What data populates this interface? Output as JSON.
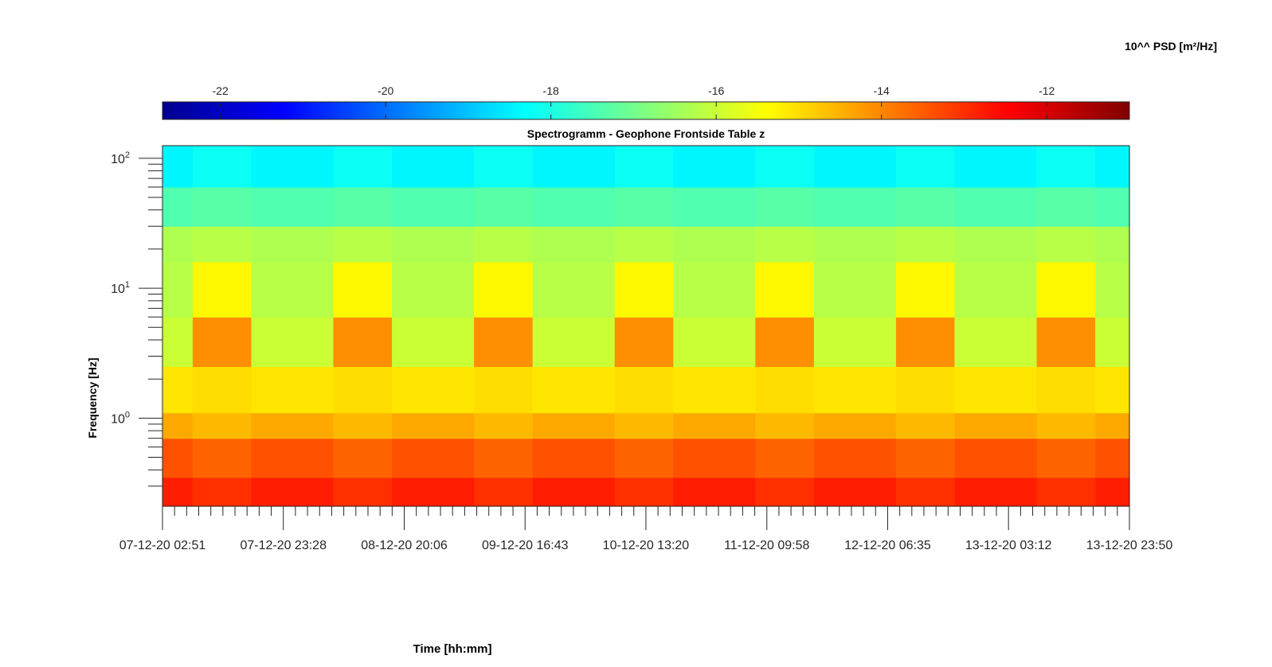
{
  "chart_data": {
    "type": "heatmap",
    "title": "Spectrogramm - Geophone Frontside Table z",
    "xlabel": "Time [hh:mm]",
    "ylabel": "Frequency [Hz]",
    "colorbar_label": "10^^ PSD [m²/Hz]",
    "colormap": "jet",
    "clim": [
      -22.7,
      -11.0
    ],
    "colorbar_ticks": [
      -22,
      -20,
      -18,
      -16,
      -14,
      -12
    ],
    "colorbar_tick_labels": [
      "-22",
      "-20",
      "-18",
      "-16",
      "-14",
      "-12"
    ],
    "x_tick_labels": [
      "07-12-20 02:51",
      "07-12-20 23:28",
      "08-12-20 20:06",
      "09-12-20 16:43",
      "10-12-20 13:20",
      "11-12-20 09:58",
      "12-12-20 06:35",
      "13-12-20 03:12",
      "13-12-20 23:50"
    ],
    "xlim": [
      "07-12-20 02:51",
      "13-12-20 23:50"
    ],
    "y_scale": "log",
    "y_tick_values": [
      1,
      10,
      100
    ],
    "ylim": [
      0.21,
      125
    ],
    "frequency_bands_hz": [
      0.21,
      0.35,
      0.7,
      1.1,
      2.5,
      6,
      16,
      30,
      60,
      125
    ],
    "day_segments": [
      {
        "start": "07-12-20 02:51",
        "end": "07-12-20 08:00",
        "period": "night"
      },
      {
        "start": "07-12-20 08:00",
        "end": "07-12-20 18:00",
        "period": "day"
      },
      {
        "start": "07-12-20 18:00",
        "end": "08-12-20 08:00",
        "period": "night"
      },
      {
        "start": "08-12-20 08:00",
        "end": "08-12-20 18:00",
        "period": "day"
      },
      {
        "start": "08-12-20 18:00",
        "end": "09-12-20 08:00",
        "period": "night"
      },
      {
        "start": "09-12-20 08:00",
        "end": "09-12-20 18:00",
        "period": "day"
      },
      {
        "start": "09-12-20 18:00",
        "end": "10-12-20 08:00",
        "period": "night"
      },
      {
        "start": "10-12-20 08:00",
        "end": "10-12-20 18:00",
        "period": "day"
      },
      {
        "start": "10-12-20 18:00",
        "end": "11-12-20 08:00",
        "period": "night"
      },
      {
        "start": "11-12-20 08:00",
        "end": "11-12-20 18:00",
        "period": "day"
      },
      {
        "start": "11-12-20 18:00",
        "end": "12-12-20 08:00",
        "period": "night"
      },
      {
        "start": "12-12-20 08:00",
        "end": "12-12-20 18:00",
        "period": "day"
      },
      {
        "start": "12-12-20 18:00",
        "end": "13-12-20 08:00",
        "period": "night"
      },
      {
        "start": "13-12-20 08:00",
        "end": "13-12-20 18:00",
        "period": "day"
      },
      {
        "start": "13-12-20 18:00",
        "end": "13-12-20 23:50",
        "period": "night"
      }
    ],
    "psd_log10_by_band": {
      "day": [
        -13.0,
        -13.6,
        -14.6,
        -15.0,
        -14.1,
        -15.3,
        -16.2,
        -17.3,
        -18.2
      ],
      "night": [
        -12.8,
        -13.4,
        -14.4,
        -15.1,
        -16.0,
        -16.2,
        -16.3,
        -17.4,
        -18.4
      ]
    },
    "grid": false
  }
}
